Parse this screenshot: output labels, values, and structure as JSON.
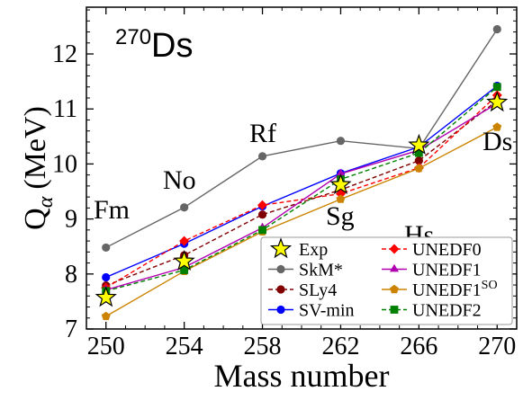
{
  "chart_data": {
    "type": "line",
    "title_sup": "270",
    "title_main": "Ds",
    "xlabel": "Mass number",
    "ylabel_main": "Q",
    "ylabel_sub": "α",
    "ylabel_unit": "(MeV)",
    "x": [
      250,
      254,
      258,
      262,
      266,
      270
    ],
    "xticks": [
      "250",
      "254",
      "258",
      "262",
      "266",
      "270"
    ],
    "yticks": [
      "7",
      "8",
      "9",
      "10",
      "11",
      "12"
    ],
    "xlim": [
      249,
      271
    ],
    "ylim": [
      7.0,
      12.85
    ],
    "grid": false,
    "legend_placement": "lower-right",
    "element_labels": [
      "Fm",
      "No",
      "Rf",
      "Sg",
      "Hs",
      "Ds"
    ],
    "series": [
      {
        "name": "Exp",
        "values": [
          7.57,
          8.23,
          null,
          9.62,
          10.34,
          11.12
        ],
        "color": "#ffff00",
        "edge": "#000000",
        "marker": "star",
        "dash": "none"
      },
      {
        "name": "SkM*",
        "values": [
          8.48,
          9.21,
          10.14,
          10.42,
          10.28,
          12.45
        ],
        "color": "#666666",
        "marker": "circle",
        "dash": "solid"
      },
      {
        "name": "SLy4",
        "values": [
          7.79,
          8.34,
          9.08,
          9.53,
          10.06,
          11.15
        ],
        "color": "#800000",
        "marker": "circle",
        "dash": "dashed"
      },
      {
        "name": "SV-min",
        "values": [
          7.94,
          8.55,
          9.23,
          9.83,
          10.31,
          11.42
        ],
        "color": "#0000ff",
        "marker": "circle",
        "dash": "solid"
      },
      {
        "name": "UNEDF0",
        "values": [
          7.75,
          8.6,
          9.25,
          9.46,
          9.93,
          11.25
        ],
        "color": "#ff0000",
        "marker": "diamond",
        "dash": "dashed"
      },
      {
        "name": "UNEDF1",
        "values": [
          7.71,
          8.12,
          8.84,
          9.82,
          10.25,
          11.1
        ],
        "color": "#b000b0",
        "marker": "triangle",
        "dash": "solid"
      },
      {
        "name": "UNEDF1",
        "name_sup": "SO",
        "values": [
          7.23,
          8.05,
          8.77,
          9.36,
          9.92,
          10.67
        ],
        "color": "#cc8400",
        "marker": "pentagon",
        "dash": "solid"
      },
      {
        "name": "UNEDF2",
        "values": [
          7.69,
          8.07,
          8.8,
          9.72,
          10.2,
          11.4
        ],
        "color": "#008000",
        "marker": "square",
        "dash": "dashed"
      }
    ]
  }
}
